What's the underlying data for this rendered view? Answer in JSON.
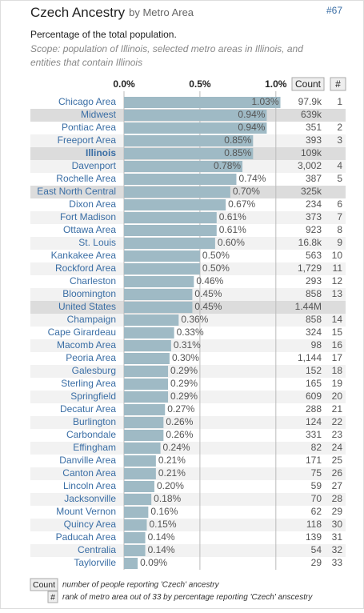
{
  "chart_data": {
    "type": "bar",
    "title": "Czech Ancestry",
    "title_suffix": "by Metro Area",
    "badge": "#67",
    "subtitle": "Percentage of the total population.",
    "scope": [
      "Scope: population of Illinois, selected metro areas in Illinois, and",
      "entities that contain Illinois"
    ],
    "count_header": "Count",
    "rank_header": "#",
    "categories": [
      "Chicago Area",
      "Midwest",
      "Pontiac Area",
      "Freeport Area",
      "Illinois",
      "Davenport",
      "Rochelle Area",
      "East North Central",
      "Dixon Area",
      "Fort Madison",
      "Ottawa Area",
      "St. Louis",
      "Kankakee Area",
      "Rockford Area",
      "Charleston",
      "Bloomington",
      "United States",
      "Champaign",
      "Cape Girardeau",
      "Macomb Area",
      "Peoria Area",
      "Galesburg",
      "Sterling Area",
      "Springfield",
      "Decatur Area",
      "Burlington",
      "Carbondale",
      "Effingham",
      "Danville Area",
      "Canton Area",
      "Lincoln Area",
      "Jacksonville",
      "Mount Vernon",
      "Quincy Area",
      "Paducah Area",
      "Centralia",
      "Taylorville"
    ],
    "values": [
      1.03,
      0.94,
      0.94,
      0.85,
      0.85,
      0.78,
      0.74,
      0.7,
      0.67,
      0.61,
      0.61,
      0.6,
      0.5,
      0.5,
      0.46,
      0.45,
      0.45,
      0.36,
      0.33,
      0.31,
      0.3,
      0.29,
      0.29,
      0.29,
      0.27,
      0.26,
      0.26,
      0.24,
      0.21,
      0.21,
      0.2,
      0.18,
      0.16,
      0.15,
      0.14,
      0.14,
      0.09
    ],
    "value_labels": [
      "1.03%",
      "0.94%",
      "0.94%",
      "0.85%",
      "0.85%",
      "0.78%",
      "0.74%",
      "0.70%",
      "0.67%",
      "0.61%",
      "0.61%",
      "0.60%",
      "0.50%",
      "0.50%",
      "0.46%",
      "0.45%",
      "0.45%",
      "0.36%",
      "0.33%",
      "0.31%",
      "0.30%",
      "0.29%",
      "0.29%",
      "0.29%",
      "0.27%",
      "0.26%",
      "0.26%",
      "0.24%",
      "0.21%",
      "0.21%",
      "0.20%",
      "0.18%",
      "0.16%",
      "0.15%",
      "0.14%",
      "0.14%",
      "0.09%"
    ],
    "counts": [
      "97.9k",
      "639k",
      "351",
      "393",
      "109k",
      "3,002",
      "387",
      "325k",
      "234",
      "373",
      "923",
      "16.8k",
      "563",
      "1,729",
      "293",
      "858",
      "1.44M",
      "858",
      "324",
      "98",
      "1,144",
      "152",
      "165",
      "609",
      "288",
      "124",
      "331",
      "82",
      "171",
      "75",
      "59",
      "70",
      "62",
      "118",
      "139",
      "54",
      "29"
    ],
    "ranks": [
      1,
      null,
      2,
      3,
      null,
      4,
      5,
      null,
      6,
      7,
      8,
      9,
      10,
      11,
      12,
      13,
      null,
      14,
      15,
      16,
      17,
      18,
      19,
      20,
      21,
      22,
      23,
      24,
      25,
      26,
      27,
      28,
      29,
      30,
      31,
      32,
      33
    ],
    "highlighted": [
      1,
      4,
      7,
      16
    ],
    "bold": [
      4
    ],
    "color": "#9fbac5",
    "xlim": [
      0,
      1.08
    ],
    "xticks": [
      {
        "value": 0,
        "label": "0.0%"
      },
      {
        "value": 0.5,
        "label": "0.5%"
      },
      {
        "value": 1.0,
        "label": "1.0%"
      }
    ],
    "grid": true,
    "footnotes": [
      {
        "key": "Count",
        "text": "number of people reporting 'Czech' ancestry"
      },
      {
        "key": "#",
        "text": "rank of metro area out of 33 by percentage reporting 'Czech' anscestry"
      }
    ]
  }
}
